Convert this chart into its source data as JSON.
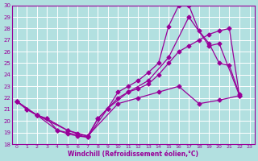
{
  "xlabel": "Windchill (Refroidissement éolien,°C)",
  "background_color": "#b2e0e0",
  "grid_color": "#ffffff",
  "line_color": "#990099",
  "xlim": [
    -0.5,
    23.5
  ],
  "ylim": [
    18,
    30
  ],
  "yticks": [
    18,
    19,
    20,
    21,
    22,
    23,
    24,
    25,
    26,
    27,
    28,
    29,
    30
  ],
  "xticks": [
    0,
    1,
    2,
    3,
    4,
    5,
    6,
    7,
    8,
    9,
    10,
    11,
    12,
    13,
    14,
    15,
    16,
    17,
    18,
    19,
    20,
    21,
    22,
    23
  ],
  "series1": [
    [
      0,
      21.7
    ],
    [
      1,
      21.0
    ],
    [
      2,
      20.5
    ],
    [
      3,
      20.2
    ],
    [
      4,
      19.2
    ],
    [
      5,
      18.9
    ],
    [
      6,
      18.7
    ],
    [
      7,
      18.6
    ],
    [
      8,
      20.2
    ],
    [
      9,
      21.1
    ],
    [
      10,
      22.5
    ],
    [
      11,
      23.0
    ],
    [
      12,
      23.5
    ],
    [
      13,
      24.2
    ],
    [
      14,
      25.0
    ],
    [
      15,
      28.2
    ],
    [
      16,
      30.0
    ],
    [
      17,
      30.0
    ],
    [
      18,
      27.8
    ],
    [
      19,
      26.7
    ],
    [
      20,
      25.0
    ],
    [
      21,
      24.8
    ],
    [
      22,
      22.3
    ]
  ],
  "series2": [
    [
      0,
      21.7
    ],
    [
      1,
      21.0
    ],
    [
      2,
      20.5
    ],
    [
      3,
      20.2
    ],
    [
      5,
      19.2
    ],
    [
      6,
      18.9
    ],
    [
      7,
      18.7
    ],
    [
      8,
      20.2
    ],
    [
      9,
      21.1
    ],
    [
      10,
      22.0
    ],
    [
      11,
      22.5
    ],
    [
      12,
      22.8
    ],
    [
      13,
      23.2
    ],
    [
      14,
      24.0
    ],
    [
      15,
      25.0
    ],
    [
      16,
      26.0
    ],
    [
      17,
      26.5
    ],
    [
      18,
      27.0
    ],
    [
      19,
      27.5
    ],
    [
      20,
      27.8
    ],
    [
      21,
      28.0
    ],
    [
      22,
      22.2
    ]
  ],
  "series3": [
    [
      0,
      21.7
    ],
    [
      2,
      20.5
    ],
    [
      4,
      19.2
    ],
    [
      7,
      18.6
    ],
    [
      9,
      21.1
    ],
    [
      11,
      22.5
    ],
    [
      13,
      23.5
    ],
    [
      15,
      25.5
    ],
    [
      17,
      29.0
    ],
    [
      19,
      26.5
    ],
    [
      20,
      26.7
    ],
    [
      22,
      22.2
    ]
  ],
  "series4": [
    [
      0,
      21.7
    ],
    [
      2,
      20.5
    ],
    [
      5,
      19.2
    ],
    [
      7,
      18.7
    ],
    [
      10,
      21.5
    ],
    [
      12,
      22.0
    ],
    [
      14,
      22.5
    ],
    [
      16,
      23.0
    ],
    [
      18,
      21.5
    ],
    [
      20,
      21.8
    ],
    [
      22,
      22.2
    ]
  ]
}
